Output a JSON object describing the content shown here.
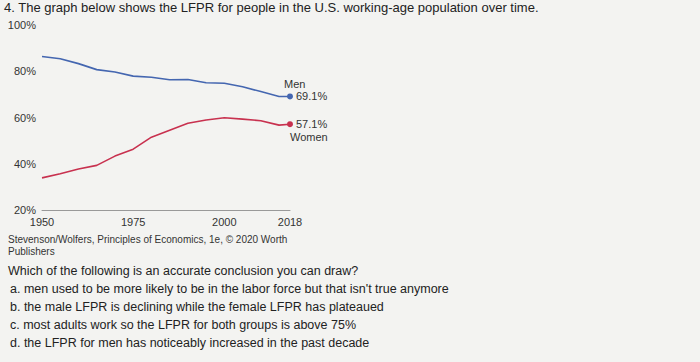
{
  "header": {
    "title": "4. The graph below shows the LFPR for people in the U.S. working-age population over time."
  },
  "chart_data": {
    "type": "line",
    "x": [
      1950,
      1955,
      1960,
      1965,
      1970,
      1975,
      1980,
      1985,
      1990,
      1995,
      2000,
      2005,
      2010,
      2015,
      2018
    ],
    "series": [
      {
        "name": "Men",
        "color": "#4466b0",
        "values": [
          86.4,
          85.4,
          83.3,
          80.7,
          79.7,
          77.9,
          77.4,
          76.3,
          76.4,
          75.0,
          74.8,
          73.3,
          71.2,
          69.1,
          69.1
        ],
        "value_labels": [
          null,
          null,
          null,
          null,
          null,
          null,
          null,
          null,
          null,
          null,
          null,
          null,
          null,
          null,
          "69.1%"
        ]
      },
      {
        "name": "Women",
        "color": "#c8314f",
        "values": [
          33.9,
          35.7,
          37.7,
          39.3,
          43.3,
          46.3,
          51.5,
          54.5,
          57.5,
          58.9,
          59.9,
          59.3,
          58.6,
          56.7,
          57.1
        ],
        "value_labels": [
          null,
          null,
          null,
          null,
          null,
          null,
          null,
          null,
          null,
          null,
          null,
          null,
          null,
          null,
          "57.1%"
        ]
      }
    ],
    "xlim": [
      1950,
      2018
    ],
    "xticks": [
      1950,
      1975,
      2000,
      2018
    ],
    "ylim": [
      20,
      100
    ],
    "yticks": [
      {
        "value": 20,
        "label": "20%"
      },
      {
        "value": 40,
        "label": "40%"
      },
      {
        "value": 60,
        "label": "60%"
      },
      {
        "value": 80,
        "label": "80%"
      },
      {
        "value": 100,
        "label": "100%"
      }
    ],
    "grid": false
  },
  "source": "Stevenson/Wolfers, Principles of Economics, 1e, © 2020 Worth Publishers",
  "question": {
    "text": "Which of the following is an accurate conclusion you can draw?",
    "options": [
      "a. men used to be more likely to be in the labor force but that isn't true anymore",
      "b. the male LFPR is declining while the female LFPR has plateaued",
      "c. most adults work so the LFPR for both groups is above 75%",
      "d. the LFPR for men has noticeably increased in the past decade"
    ]
  }
}
